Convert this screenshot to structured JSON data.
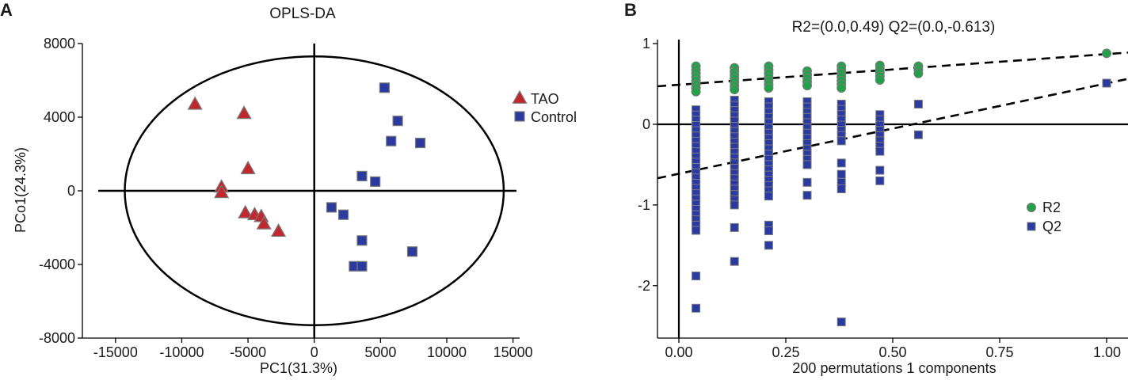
{
  "colors": {
    "tao": "#c0282d",
    "control": "#2b3a9e",
    "r2": "#23a04a",
    "q2": "#2b3a9e",
    "marker_edge": "#7a7a7a",
    "axis": "#000000"
  },
  "chart_data": [
    {
      "panel": "A",
      "type": "scatter",
      "title": "OPLS-DA",
      "xlabel": "PC1(31.3%)",
      "ylabel": "PCo1(24.3%)",
      "xlim": [
        -17500,
        15500
      ],
      "ylim": [
        -8000,
        8000
      ],
      "xticks": [
        -15000,
        -10000,
        -5000,
        0,
        5000,
        10000,
        15000
      ],
      "xtick_labels": [
        "-15000",
        "-10000",
        "-5000",
        "0",
        "5000",
        "10000",
        "15000"
      ],
      "yticks": [
        8000,
        4000,
        0,
        -4000,
        -8000
      ],
      "ytick_labels": [
        "8000",
        "4000",
        "0",
        "-4000",
        "-8000"
      ],
      "confidence_ellipse": {
        "center": [
          0,
          0
        ],
        "semi_x": 14300,
        "semi_y": 7300
      },
      "legend_position": "top-right",
      "series": [
        {
          "name": "TAO",
          "marker": "triangle",
          "points": [
            [
              -9000,
              4700
            ],
            [
              -5300,
              4200
            ],
            [
              -5000,
              1200
            ],
            [
              -7000,
              200
            ],
            [
              -7000,
              -100
            ],
            [
              -5200,
              -1200
            ],
            [
              -4500,
              -1300
            ],
            [
              -4000,
              -1400
            ],
            [
              -3800,
              -1800
            ],
            [
              -2700,
              -2200
            ]
          ]
        },
        {
          "name": "Control",
          "marker": "square",
          "points": [
            [
              5300,
              5600
            ],
            [
              6300,
              3800
            ],
            [
              5800,
              2700
            ],
            [
              8000,
              2600
            ],
            [
              3600,
              800
            ],
            [
              4600,
              500
            ],
            [
              1300,
              -900
            ],
            [
              2200,
              -1300
            ],
            [
              3600,
              -2700
            ],
            [
              7400,
              -3300
            ],
            [
              3000,
              -4100
            ],
            [
              3600,
              -4100
            ]
          ]
        }
      ]
    },
    {
      "panel": "B",
      "type": "scatter",
      "title": "R2=(0.0,0.49)    Q2=(0.0,-0.613)",
      "xlabel": "200 permutations 1 components",
      "ylabel": "",
      "xlim": [
        -0.05,
        1.05
      ],
      "ylim": [
        -2.65,
        1.05
      ],
      "xticks": [
        0.0,
        0.25,
        0.5,
        0.75,
        1.0
      ],
      "xtick_labels": [
        "0.00",
        "0.25",
        "0.50",
        "0.75",
        "1.00"
      ],
      "yticks": [
        1,
        0,
        -1,
        -2
      ],
      "ytick_labels": [
        "1",
        "0",
        "-1",
        "-2"
      ],
      "legend_position": "bottom-right",
      "regression_lines": {
        "R2": {
          "intercept": 0.49,
          "slope": 0.38
        },
        "Q2": {
          "intercept": -0.613,
          "slope": 1.12
        }
      },
      "series": [
        {
          "name": "R2",
          "marker": "circle",
          "groups": [
            {
              "x": 0.04,
              "y_min": 0.38,
              "y_max": 0.72
            },
            {
              "x": 0.13,
              "y_min": 0.4,
              "y_max": 0.7
            },
            {
              "x": 0.21,
              "y_min": 0.42,
              "y_max": 0.72
            },
            {
              "x": 0.3,
              "y_min": 0.45,
              "y_max": 0.66
            },
            {
              "x": 0.38,
              "y_min": 0.42,
              "y_max": 0.72
            },
            {
              "x": 0.47,
              "y_min": 0.55,
              "y_max": 0.73
            },
            {
              "x": 0.56,
              "y_min": 0.6,
              "y_max": 0.72
            }
          ],
          "extra_points": [
            [
              1.0,
              0.88
            ]
          ]
        },
        {
          "name": "Q2",
          "marker": "square",
          "groups": [
            {
              "x": 0.04,
              "y_min": -1.32,
              "y_max": 0.18
            },
            {
              "x": 0.13,
              "y_min": -1.05,
              "y_max": 0.3
            },
            {
              "x": 0.21,
              "y_min": -0.9,
              "y_max": 0.28
            },
            {
              "x": 0.3,
              "y_min": -0.55,
              "y_max": 0.28
            },
            {
              "x": 0.38,
              "y_min": -0.25,
              "y_max": 0.25
            },
            {
              "x": 0.47,
              "y_min": -0.38,
              "y_max": 0.12
            }
          ],
          "extra_points": [
            [
              0.04,
              -1.88
            ],
            [
              0.04,
              -2.28
            ],
            [
              0.13,
              -1.28
            ],
            [
              0.13,
              -1.7
            ],
            [
              0.21,
              -1.25
            ],
            [
              0.21,
              -1.32
            ],
            [
              0.21,
              -1.5
            ],
            [
              0.3,
              -0.72
            ],
            [
              0.3,
              -0.88
            ],
            [
              0.38,
              -0.48
            ],
            [
              0.38,
              -0.62
            ],
            [
              0.38,
              -0.72
            ],
            [
              0.38,
              -0.8
            ],
            [
              0.38,
              -2.45
            ],
            [
              0.47,
              -0.57
            ],
            [
              0.47,
              -0.7
            ],
            [
              0.56,
              0.25
            ],
            [
              0.56,
              -0.13
            ],
            [
              1.0,
              0.51
            ]
          ]
        }
      ]
    }
  ]
}
